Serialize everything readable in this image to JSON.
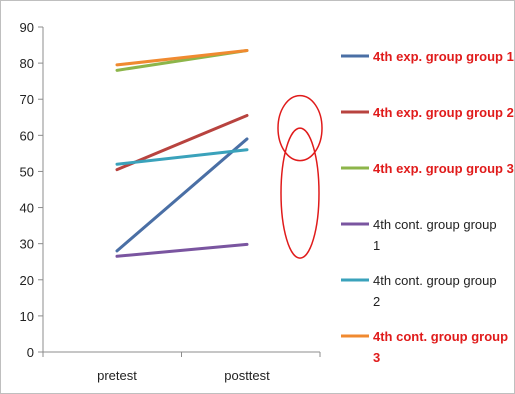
{
  "chart_data": {
    "type": "line",
    "categories": [
      "pretest",
      "posttest"
    ],
    "ylim": [
      0,
      90
    ],
    "yticks": [
      0,
      10,
      20,
      30,
      40,
      50,
      60,
      70,
      80,
      90
    ],
    "grid": false,
    "legend_position": "right",
    "series": [
      {
        "name": "4th exp. group group 1",
        "name_lines": [
          "4th exp. group group 1"
        ],
        "values": [
          28,
          59
        ],
        "color": "#4a6fa5",
        "label_color": "#e01b1b",
        "label_bold": true
      },
      {
        "name": "4th exp. group group 2",
        "name_lines": [
          "4th exp. group group 2"
        ],
        "values": [
          50.5,
          65.5
        ],
        "color": "#b8433f",
        "label_color": "#e01b1b",
        "label_bold": true
      },
      {
        "name": "4th exp. group group 3",
        "name_lines": [
          "4th exp. group group 3"
        ],
        "values": [
          78,
          83.5
        ],
        "color": "#8db54a",
        "label_color": "#e01b1b",
        "label_bold": true
      },
      {
        "name": "4th cont. group group 1",
        "name_lines": [
          "4th cont. group group",
          "1"
        ],
        "values": [
          26.5,
          29.8
        ],
        "color": "#7a55a0",
        "label_color": "#222222",
        "label_bold": false
      },
      {
        "name": "4th cont. group group 2",
        "name_lines": [
          "4th cont. group group",
          "2"
        ],
        "values": [
          52,
          56
        ],
        "color": "#3aa2bb",
        "label_color": "#222222",
        "label_bold": false
      },
      {
        "name": "4th cont. group group 3",
        "name_lines": [
          "4th cont. group group",
          "3"
        ],
        "values": [
          79.5,
          83.5
        ],
        "color": "#f08a30",
        "label_color": "#e01b1b",
        "label_bold": true
      }
    ],
    "annotations": [
      {
        "type": "ellipse",
        "color": "#e01b1b",
        "y_range": [
          53,
          71
        ],
        "x_position": "right-of-posttest"
      },
      {
        "type": "ellipse",
        "color": "#e01b1b",
        "y_range": [
          26,
          62
        ],
        "x_position": "right-of-posttest"
      }
    ]
  }
}
